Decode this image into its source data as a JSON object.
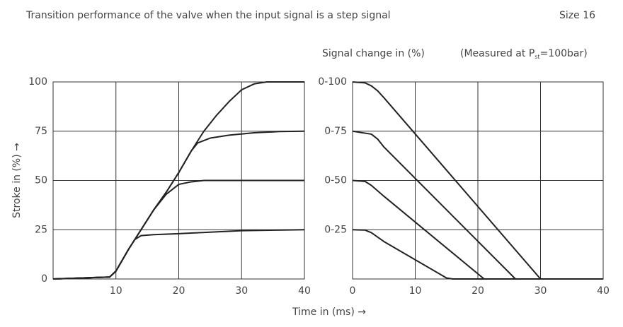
{
  "header": {
    "title": "Transition performance of the valve when the input signal is a step signal",
    "size": "Size 16",
    "note_parts": [
      "(Measured at P",
      "st",
      "=100bar)"
    ],
    "xlabel": "Time in (ms) →"
  },
  "chart_data": [
    {
      "type": "line",
      "ylabel": "Stroke in (%) →",
      "xlim": [
        0,
        40
      ],
      "ylim": [
        0,
        100
      ],
      "xticks": [
        10,
        20,
        30,
        40
      ],
      "yticks": [
        0,
        25,
        50,
        75,
        100
      ],
      "grid": true,
      "series": [
        {
          "color": "#222222",
          "x": [
            0,
            5,
            9,
            10,
            12,
            14,
            16,
            18,
            20,
            22,
            24,
            26,
            28,
            30,
            32,
            34,
            40
          ],
          "values": [
            0,
            0.5,
            1,
            4,
            15,
            25,
            35,
            44,
            54,
            65,
            75,
            83,
            90,
            96,
            99,
            100,
            100
          ]
        },
        {
          "color": "#222222",
          "x": [
            0,
            9,
            10,
            12,
            14,
            16,
            18,
            20,
            22,
            23,
            25,
            28,
            32,
            36,
            40
          ],
          "values": [
            0,
            1,
            4,
            15,
            25,
            35,
            44,
            54,
            65,
            69,
            71.5,
            73,
            74.2,
            74.8,
            75
          ]
        },
        {
          "color": "#222222",
          "x": [
            0,
            9,
            10,
            12,
            14,
            16,
            18,
            20,
            22,
            24,
            40
          ],
          "values": [
            0,
            1,
            4,
            15,
            25,
            35,
            43,
            48,
            49.3,
            50,
            50
          ]
        },
        {
          "color": "#222222",
          "x": [
            0,
            9,
            10,
            12,
            13,
            14,
            16,
            20,
            30,
            40
          ],
          "values": [
            0,
            1,
            4,
            15,
            20,
            22,
            22.5,
            23,
            24.5,
            25
          ]
        }
      ]
    },
    {
      "type": "line",
      "ylabel": "Signal change in (%)",
      "xlim": [
        0,
        40
      ],
      "ylim": [
        0,
        100
      ],
      "xticks": [
        0,
        10,
        20,
        30,
        40
      ],
      "yticks": [
        {
          "value": 25,
          "label": "0-25"
        },
        {
          "value": 50,
          "label": "0-50"
        },
        {
          "value": 75,
          "label": "0-75"
        },
        {
          "value": 100,
          "label": "0-100"
        }
      ],
      "grid": true,
      "series": [
        {
          "color": "#222222",
          "x": [
            0,
            2,
            3,
            4,
            5,
            30,
            40
          ],
          "values": [
            100,
            99.5,
            98,
            95.5,
            92,
            0,
            0
          ]
        },
        {
          "color": "#222222",
          "x": [
            0,
            3,
            4,
            5,
            26,
            40
          ],
          "values": [
            75,
            73.5,
            71,
            67,
            0,
            0
          ]
        },
        {
          "color": "#222222",
          "x": [
            0,
            2,
            3,
            5,
            21,
            40
          ],
          "values": [
            50,
            49.5,
            47.5,
            42,
            0,
            0
          ]
        },
        {
          "color": "#222222",
          "x": [
            0,
            2,
            3,
            5,
            15,
            16,
            40
          ],
          "values": [
            25,
            24.8,
            23.5,
            19,
            0.5,
            0,
            0
          ]
        }
      ]
    }
  ]
}
